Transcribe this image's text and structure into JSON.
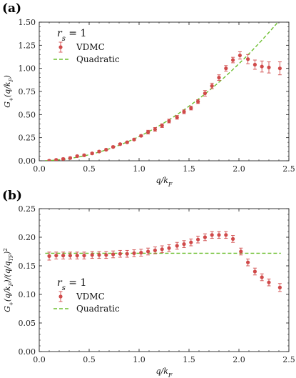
{
  "colors": {
    "vdmc": "#d04a4a",
    "quadratic": "#6cbf2f",
    "axis": "#222222"
  },
  "chart_data": [
    {
      "type": "scatter",
      "panel_label": "(a)",
      "annotation_label": "r",
      "annotation_subscript": "s",
      "annotation_value": "= 1",
      "xlabel": "q/k_F",
      "ylabel": "G_+(q/k_F)",
      "xlim": [
        0.0,
        2.5
      ],
      "ylim": [
        0.0,
        1.5
      ],
      "xticks": [
        "0.0",
        "0.5",
        "1.0",
        "1.5",
        "2.0",
        "2.5"
      ],
      "yticks": [
        "0.00",
        "0.25",
        "0.50",
        "0.75",
        "1.00",
        "1.25",
        "1.50"
      ],
      "legend_position": "upper-left",
      "series": [
        {
          "name": "VDMC",
          "style": "markers-errorbars",
          "x": [
            0.1,
            0.17,
            0.24,
            0.31,
            0.38,
            0.45,
            0.53,
            0.6,
            0.67,
            0.74,
            0.81,
            0.88,
            0.95,
            1.02,
            1.09,
            1.16,
            1.23,
            1.3,
            1.38,
            1.45,
            1.52,
            1.59,
            1.66,
            1.73,
            1.8,
            1.87,
            1.94,
            2.01,
            2.09,
            2.16,
            2.23,
            2.3,
            2.41
          ],
          "y": [
            0.0,
            0.01,
            0.02,
            0.03,
            0.05,
            0.06,
            0.08,
            0.1,
            0.12,
            0.15,
            0.18,
            0.2,
            0.23,
            0.27,
            0.31,
            0.34,
            0.38,
            0.43,
            0.47,
            0.53,
            0.57,
            0.64,
            0.73,
            0.81,
            0.9,
            1.0,
            1.09,
            1.14,
            1.1,
            1.04,
            1.02,
            1.01,
            1.0
          ],
          "err": [
            0.01,
            0.01,
            0.01,
            0.01,
            0.01,
            0.01,
            0.01,
            0.01,
            0.01,
            0.01,
            0.01,
            0.01,
            0.01,
            0.01,
            0.02,
            0.02,
            0.02,
            0.02,
            0.02,
            0.02,
            0.02,
            0.02,
            0.03,
            0.03,
            0.03,
            0.03,
            0.03,
            0.04,
            0.05,
            0.05,
            0.06,
            0.06,
            0.07
          ]
        },
        {
          "name": "Quadratic",
          "style": "dashed-line",
          "coefficient": 0.2625,
          "x_range": [
            0.06,
            2.42
          ]
        }
      ]
    },
    {
      "type": "scatter",
      "panel_label": "(b)",
      "annotation_label": "r",
      "annotation_subscript": "s",
      "annotation_value": "= 1",
      "xlabel": "q/k_F",
      "ylabel": "G_+(q/k_F)/(q/q_TF)^2",
      "xlim": [
        0.0,
        2.5
      ],
      "ylim": [
        0.0,
        0.25
      ],
      "xticks": [
        "0.0",
        "0.5",
        "1.0",
        "1.5",
        "2.0",
        "2.5"
      ],
      "yticks": [
        "0.00",
        "0.05",
        "0.10",
        "0.15",
        "0.20",
        "0.25"
      ],
      "legend_position": "lower-left",
      "series": [
        {
          "name": "VDMC",
          "style": "markers-errorbars",
          "x": [
            0.1,
            0.17,
            0.24,
            0.31,
            0.38,
            0.45,
            0.53,
            0.6,
            0.67,
            0.74,
            0.81,
            0.88,
            0.95,
            1.02,
            1.09,
            1.16,
            1.23,
            1.3,
            1.38,
            1.45,
            1.52,
            1.59,
            1.66,
            1.73,
            1.8,
            1.87,
            1.94,
            2.02,
            2.09,
            2.16,
            2.23,
            2.3,
            2.41
          ],
          "y": [
            0.167,
            0.168,
            0.168,
            0.168,
            0.168,
            0.168,
            0.169,
            0.169,
            0.169,
            0.17,
            0.171,
            0.171,
            0.172,
            0.173,
            0.175,
            0.177,
            0.179,
            0.181,
            0.185,
            0.188,
            0.191,
            0.196,
            0.2,
            0.204,
            0.204,
            0.204,
            0.197,
            0.175,
            0.156,
            0.14,
            0.13,
            0.121,
            0.112
          ],
          "err": [
            0.007,
            0.006,
            0.006,
            0.006,
            0.006,
            0.006,
            0.006,
            0.006,
            0.006,
            0.006,
            0.006,
            0.006,
            0.006,
            0.006,
            0.006,
            0.006,
            0.006,
            0.006,
            0.006,
            0.006,
            0.006,
            0.006,
            0.006,
            0.006,
            0.006,
            0.006,
            0.006,
            0.006,
            0.006,
            0.006,
            0.006,
            0.006,
            0.007
          ]
        },
        {
          "name": "Quadratic",
          "style": "dashed-line",
          "value": 0.172,
          "x_range": [
            0.06,
            2.42
          ]
        }
      ]
    }
  ]
}
